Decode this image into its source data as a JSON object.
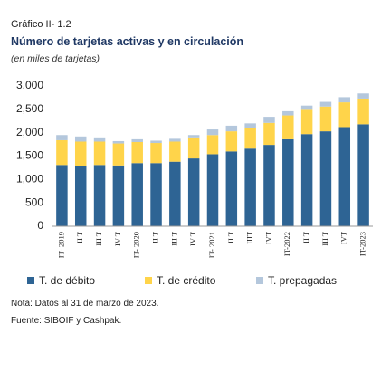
{
  "chart_data": {
    "type": "stacked_bar",
    "label": "Gráfico II- 1.2",
    "title": "Número de tarjetas activas y en circulación",
    "subtitle": "(en miles de tarjetas)",
    "categories": [
      "IT- 2019",
      "II T",
      "III T",
      "IV T",
      "IT- 2020",
      "II T",
      "III T",
      "IV T",
      "IT- 2021",
      "II T",
      "IIIT",
      "IVT",
      "IT-2022",
      "II T",
      "III T",
      "IVT",
      "IT-2023"
    ],
    "series": [
      {
        "name": "T. de débito",
        "color": "#2e6494",
        "values": [
          1310,
          1290,
          1310,
          1300,
          1350,
          1350,
          1380,
          1450,
          1540,
          1600,
          1660,
          1740,
          1860,
          1970,
          2030,
          2120,
          2180
        ]
      },
      {
        "name": "T. de crédito",
        "color": "#ffd44a",
        "values": [
          530,
          520,
          500,
          470,
          450,
          430,
          430,
          450,
          410,
          430,
          440,
          470,
          510,
          520,
          530,
          530,
          550
        ]
      },
      {
        "name": "T. prepagadas",
        "color": "#b4c7dc",
        "values": [
          110,
          110,
          90,
          50,
          60,
          50,
          60,
          50,
          120,
          120,
          100,
          130,
          90,
          90,
          100,
          110,
          110
        ]
      }
    ],
    "ylim": [
      0,
      3000
    ],
    "yticks": [
      0,
      {
        "value": 500,
        "label": "500"
      },
      {
        "value": 1000,
        "label": "1,000"
      },
      {
        "value": 1500,
        "label": "1,500"
      },
      {
        "value": 2000,
        "label": "2,000"
      },
      {
        "value": 2500,
        "label": "2,500"
      },
      {
        "value": 3000,
        "label": "3,000"
      }
    ],
    "grid": false,
    "legend": "bottom",
    "notes": [
      "Nota: Datos al 31 de marzo de 2023.",
      "Fuente: SIBOIF y Cashpak."
    ]
  }
}
